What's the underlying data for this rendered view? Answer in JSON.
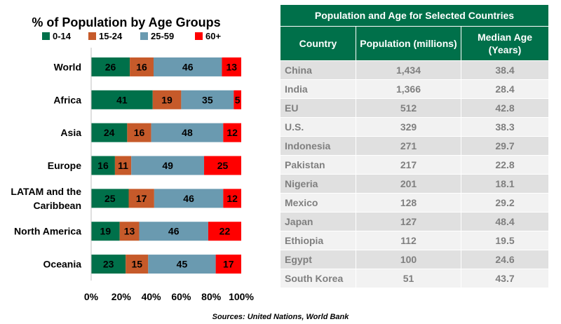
{
  "chart_data": {
    "type": "bar",
    "orientation": "horizontal",
    "stacked": true,
    "title": "% of Population by Age Groups",
    "categories": [
      "World",
      "Africa",
      "Asia",
      "Europe",
      "LATAM and the Caribbean",
      "North America",
      "Oceania"
    ],
    "category_lines": [
      [
        "World"
      ],
      [
        "Africa"
      ],
      [
        "Asia"
      ],
      [
        "Europe"
      ],
      [
        "LATAM and the",
        "Caribbean"
      ],
      [
        "North America"
      ],
      [
        "Oceania"
      ]
    ],
    "series": [
      {
        "name": "0-14",
        "color": "#00704a",
        "label_color": "#000000",
        "values": [
          26,
          41,
          24,
          16,
          25,
          19,
          23
        ]
      },
      {
        "name": "15-24",
        "color": "#c65a2a",
        "label_color": "#000000",
        "values": [
          16,
          19,
          16,
          11,
          17,
          13,
          15
        ]
      },
      {
        "name": "25-59",
        "color": "#6a9ab0",
        "label_color": "#000000",
        "values": [
          46,
          35,
          48,
          49,
          46,
          46,
          45
        ]
      },
      {
        "name": "60+",
        "color": "#ff0000",
        "label_color": "#000000",
        "values": [
          13,
          5,
          12,
          25,
          12,
          22,
          17
        ]
      }
    ],
    "xlim": [
      0,
      100
    ],
    "ticks": [
      "0%",
      "20%",
      "40%",
      "60%",
      "80%",
      "100%"
    ],
    "legend": "top",
    "grid": false
  },
  "table": {
    "title": "Population and Age for Selected Countries",
    "headers": [
      "Country",
      "Population (millions)",
      "Median Age\n(Years)"
    ],
    "rows": [
      [
        "China",
        "1,434",
        "38.4"
      ],
      [
        "India",
        "1,366",
        "28.4"
      ],
      [
        "EU",
        "512",
        "42.8"
      ],
      [
        "U.S.",
        "329",
        "38.3"
      ],
      [
        "Indonesia",
        "271",
        "29.7"
      ],
      [
        "Pakistan",
        "217",
        "22.8"
      ],
      [
        "Nigeria",
        "201",
        "18.1"
      ],
      [
        "Mexico",
        "128",
        "29.2"
      ],
      [
        "Japan",
        "127",
        "48.4"
      ],
      [
        "Ethiopia",
        "112",
        "19.5"
      ],
      [
        "Egypt",
        "100",
        "24.6"
      ],
      [
        "South Korea",
        "51",
        "43.7"
      ]
    ]
  },
  "footer": "Sources: United Nations, World Bank"
}
